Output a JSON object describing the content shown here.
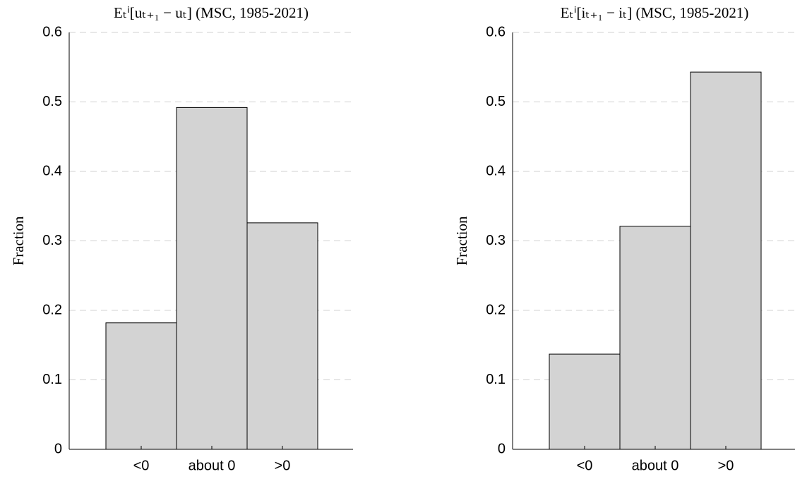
{
  "chart_data": [
    {
      "type": "bar",
      "title": "Eₜⁱ[uₜ₊₁ − uₜ] (MSC, 1985-2021)",
      "y_label": "Fraction",
      "categories": [
        "<0",
        "about 0",
        ">0"
      ],
      "values": [
        0.182,
        0.492,
        0.326
      ],
      "color": "#d3d3d3",
      "ylim": [
        0,
        0.6
      ],
      "yticks": [
        0,
        0.1,
        0.2,
        0.3,
        0.4,
        0.5,
        0.6
      ],
      "grid": true
    },
    {
      "type": "bar",
      "title": "Eₜⁱ[iₜ₊₁ − iₜ] (MSC, 1985-2021)",
      "y_label": "Fraction",
      "categories": [
        "<0",
        "about 0",
        ">0"
      ],
      "values": [
        0.137,
        0.321,
        0.543
      ],
      "color": "#d3d3d3",
      "ylim": [
        0,
        0.6
      ],
      "yticks": [
        0,
        0.1,
        0.2,
        0.3,
        0.4,
        0.5,
        0.6
      ],
      "grid": true
    }
  ]
}
